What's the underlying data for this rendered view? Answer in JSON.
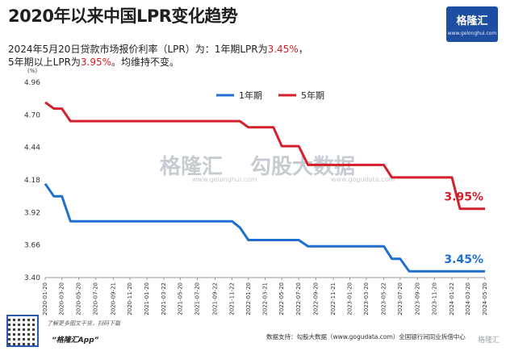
{
  "title": "2020年以来中国LPR变化趋势",
  "subtitle": {
    "line1_prefix": "2024年5月20日贷款市场报价利率（LPR）为：1年期LPR为",
    "line1_value": "3.45%",
    "line1_suffix": "，",
    "line2_prefix": "5年期以上LPR为",
    "line2_value": "3.95%",
    "line2_suffix": "。均维持不变。"
  },
  "logo": {
    "name": "格隆汇",
    "url": "www.gelonghui.com"
  },
  "watermark": {
    "left": "格隆汇",
    "left_sub": "www.gelonghui.com",
    "right": "勾股大数据",
    "right_sub": "www.gogudata.com"
  },
  "footer": {
    "scan_text": "了解更多图文干货，扫码下载",
    "app_name": "“格隆汇App”",
    "source": "数据支持：勾股大数据（www.gogudata.com）全国银行间同业拆借中心",
    "corner": "格隆汇"
  },
  "colors": {
    "one_year": "#1f6fd0",
    "five_year": "#d4202a"
  },
  "chart_data": {
    "type": "line",
    "unit_label": "(%)",
    "ylim": [
      3.4,
      4.96
    ],
    "yticks": [
      "4.96",
      "4.70",
      "4.44",
      "4.18",
      "3.92",
      "3.66",
      "3.40"
    ],
    "ytick_values": [
      4.96,
      4.7,
      4.44,
      4.18,
      3.92,
      3.66,
      3.4
    ],
    "grid": false,
    "legend_position": "top-center",
    "x_start": "2020-01-20",
    "x_end": "2024-05-20",
    "xticks": [
      "2020-01-20",
      "2020-03-20",
      "2020-05-20",
      "2020-07-20",
      "2020-09-21",
      "2020-11-20",
      "2021-01-20",
      "2021-03-22",
      "2021-05-20",
      "2021-07-20",
      "2021-09-22",
      "2021-11-22",
      "2022-01-20",
      "2022-03-21",
      "2022-05-20",
      "2022-07-20",
      "2022-09-20",
      "2022-11-21",
      "2023-01-20",
      "2023-03-20",
      "2023-05-22",
      "2023-07-20",
      "2023-09-20",
      "2023-11-20",
      "2024-01-22",
      "2024-03-20",
      "2024-05-20"
    ],
    "series": [
      {
        "name": "1年期",
        "color": "#1f6fd0",
        "end_label": "3.45%",
        "points": [
          [
            "2020-01-20",
            4.15
          ],
          [
            "2020-02-20",
            4.05
          ],
          [
            "2020-03-20",
            4.05
          ],
          [
            "2020-04-20",
            3.85
          ],
          [
            "2021-11-22",
            3.85
          ],
          [
            "2021-12-20",
            3.8
          ],
          [
            "2022-01-20",
            3.7
          ],
          [
            "2022-07-20",
            3.7
          ],
          [
            "2022-08-22",
            3.65
          ],
          [
            "2023-05-22",
            3.65
          ],
          [
            "2023-06-20",
            3.55
          ],
          [
            "2023-07-20",
            3.55
          ],
          [
            "2023-08-21",
            3.45
          ],
          [
            "2024-05-20",
            3.45
          ]
        ]
      },
      {
        "name": "5年期",
        "color": "#d4202a",
        "end_label": "3.95%",
        "points": [
          [
            "2020-01-20",
            4.8
          ],
          [
            "2020-02-20",
            4.75
          ],
          [
            "2020-03-20",
            4.75
          ],
          [
            "2020-04-20",
            4.65
          ],
          [
            "2021-12-20",
            4.65
          ],
          [
            "2022-01-20",
            4.6
          ],
          [
            "2022-04-20",
            4.6
          ],
          [
            "2022-05-20",
            4.45
          ],
          [
            "2022-07-20",
            4.45
          ],
          [
            "2022-08-22",
            4.3
          ],
          [
            "2023-05-22",
            4.3
          ],
          [
            "2023-06-20",
            4.2
          ],
          [
            "2024-01-22",
            4.2
          ],
          [
            "2024-02-20",
            3.95
          ],
          [
            "2024-05-20",
            3.95
          ]
        ]
      }
    ]
  }
}
